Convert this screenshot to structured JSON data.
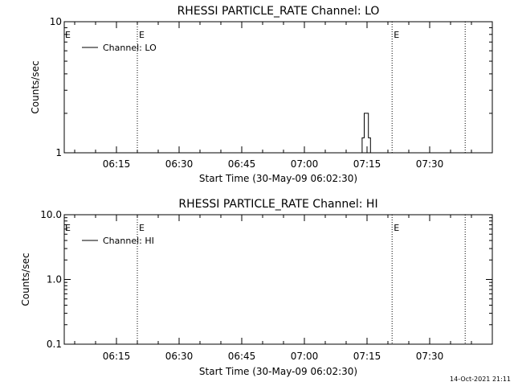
{
  "footer": {
    "timestamp": "14-Oct-2021 21:11"
  },
  "chart_data": [
    {
      "type": "line",
      "title": "RHESSI PARTICLE_RATE Channel: LO",
      "xlabel": "Start Time (30-May-09 06:02:30)",
      "ylabel": "Counts/sec",
      "y_scale": "log",
      "ylim": [
        1,
        10
      ],
      "y_ticks": [
        "1",
        "10"
      ],
      "x_range": [
        "06:02:30",
        "07:45:00"
      ],
      "x_ticks": [
        "06:15",
        "06:30",
        "06:45",
        "07:00",
        "07:15",
        "07:30"
      ],
      "legend": {
        "position": "top-left",
        "entries": [
          "Channel: LO"
        ]
      },
      "markers": [
        {
          "time": "06:20:00",
          "label": "E"
        },
        {
          "time": "07:21:00",
          "label": "E"
        },
        {
          "time": "07:38:30",
          "label": ""
        }
      ],
      "edge_label": "E",
      "series": [
        {
          "name": "Channel: LO",
          "points": [
            [
              "07:13:50",
              1
            ],
            [
              "07:13:50",
              1.3
            ],
            [
              "07:14:20",
              1.3
            ],
            [
              "07:14:20",
              2
            ],
            [
              "07:15:20",
              2
            ],
            [
              "07:15:20",
              1.3
            ],
            [
              "07:15:50",
              1.3
            ],
            [
              "07:15:50",
              1
            ]
          ]
        }
      ]
    },
    {
      "type": "line",
      "title": "RHESSI PARTICLE_RATE Channel: HI",
      "xlabel": "Start Time (30-May-09 06:02:30)",
      "ylabel": "Counts/sec",
      "y_scale": "log",
      "ylim": [
        0.1,
        10
      ],
      "y_ticks": [
        "0.1",
        "1.0",
        "10.0"
      ],
      "x_range": [
        "06:02:30",
        "07:45:00"
      ],
      "x_ticks": [
        "06:15",
        "06:30",
        "06:45",
        "07:00",
        "07:15",
        "07:30"
      ],
      "legend": {
        "position": "top-left",
        "entries": [
          "Channel: HI"
        ]
      },
      "markers": [
        {
          "time": "06:20:00",
          "label": "E"
        },
        {
          "time": "07:21:00",
          "label": "E"
        },
        {
          "time": "07:38:30",
          "label": ""
        }
      ],
      "edge_label": "E",
      "series": [
        {
          "name": "Channel: HI",
          "points": []
        }
      ]
    }
  ]
}
